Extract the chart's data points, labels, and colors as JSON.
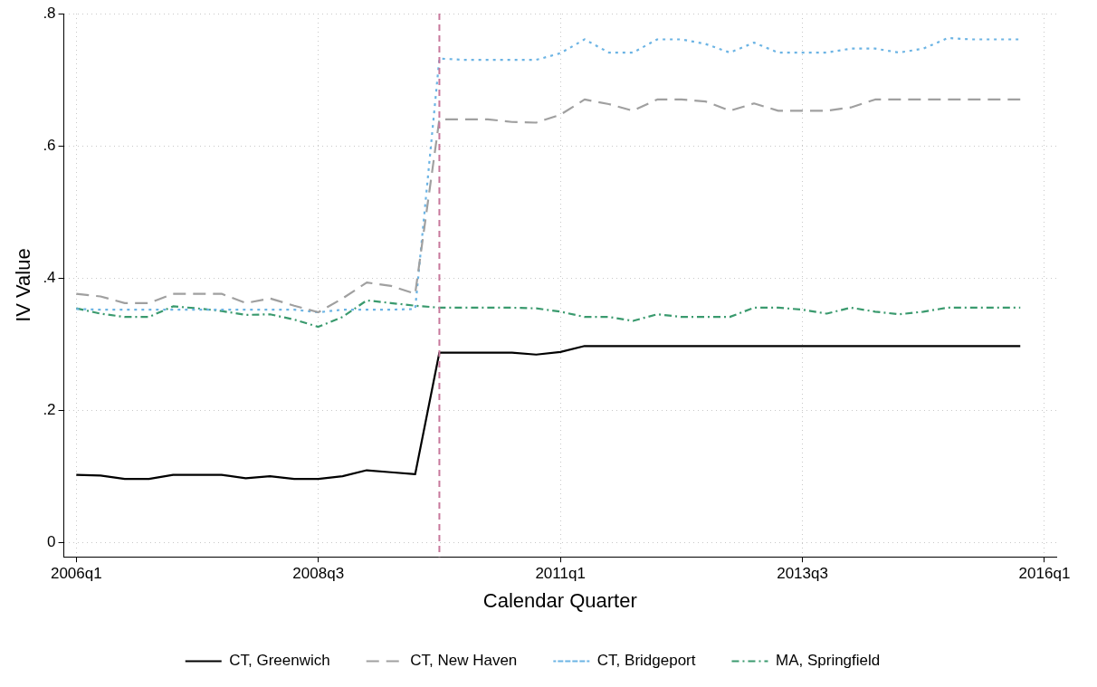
{
  "chart_data": {
    "type": "line",
    "xlabel": "Calendar Quarter",
    "ylabel": "IV Value",
    "x": [
      "2006-01",
      "2006-04",
      "2006-07",
      "2006-10",
      "2007-01",
      "2007-04",
      "2007-07",
      "2007-10",
      "2008-01",
      "2008-04",
      "2008-07",
      "2008-10",
      "2009-01",
      "2009-04",
      "2009-07",
      "2009-10",
      "2010-01",
      "2010-04",
      "2010-07",
      "2010-10",
      "2011-01",
      "2011-04",
      "2011-07",
      "2011-10",
      "2012-01",
      "2012-04",
      "2012-07",
      "2012-10",
      "2013-01",
      "2013-04",
      "2013-07",
      "2013-10",
      "2014-01",
      "2014-04",
      "2014-07",
      "2014-10",
      "2015-01",
      "2015-04",
      "2015-07",
      "2015-10"
    ],
    "series": [
      {
        "name": "CT, Greenwich",
        "color": "#000000",
        "line_style": "solid",
        "values": [
          0.102,
          0.101,
          0.096,
          0.096,
          0.102,
          0.102,
          0.102,
          0.097,
          0.1,
          0.096,
          0.096,
          0.1,
          0.109,
          0.106,
          0.103,
          0.287,
          0.287,
          0.287,
          0.287,
          0.284,
          0.288,
          0.297,
          0.297,
          0.297,
          0.297,
          0.297,
          0.297,
          0.297,
          0.297,
          0.297,
          0.297,
          0.297,
          0.297,
          0.297,
          0.297,
          0.297,
          0.297,
          0.297,
          0.297,
          0.297
        ]
      },
      {
        "name": "CT, New Haven",
        "color": "#a0a0a0",
        "line_style": "dashed",
        "values": [
          0.376,
          0.372,
          0.362,
          0.362,
          0.376,
          0.376,
          0.376,
          0.362,
          0.369,
          0.358,
          0.348,
          0.369,
          0.393,
          0.388,
          0.376,
          0.64,
          0.64,
          0.64,
          0.636,
          0.635,
          0.647,
          0.67,
          0.663,
          0.653,
          0.67,
          0.67,
          0.667,
          0.653,
          0.664,
          0.653,
          0.653,
          0.653,
          0.658,
          0.67,
          0.67,
          0.67,
          0.67,
          0.67,
          0.67,
          0.67
        ]
      },
      {
        "name": "CT, Bridgeport",
        "color": "#6cb4e4",
        "line_style": "dotted",
        "values": [
          0.353,
          0.352,
          0.352,
          0.352,
          0.352,
          0.352,
          0.352,
          0.352,
          0.352,
          0.352,
          0.348,
          0.352,
          0.352,
          0.352,
          0.353,
          0.732,
          0.73,
          0.73,
          0.73,
          0.73,
          0.74,
          0.761,
          0.741,
          0.741,
          0.761,
          0.761,
          0.754,
          0.741,
          0.756,
          0.741,
          0.741,
          0.741,
          0.747,
          0.747,
          0.741,
          0.747,
          0.763,
          0.761,
          0.761,
          0.761
        ]
      },
      {
        "name": "MA, Springfield",
        "color": "#3a9a6e",
        "line_style": "dashdot",
        "values": [
          0.354,
          0.346,
          0.341,
          0.341,
          0.357,
          0.354,
          0.35,
          0.344,
          0.345,
          0.337,
          0.326,
          0.341,
          0.366,
          0.362,
          0.358,
          0.355,
          0.355,
          0.355,
          0.355,
          0.354,
          0.349,
          0.341,
          0.341,
          0.335,
          0.345,
          0.341,
          0.341,
          0.341,
          0.355,
          0.355,
          0.352,
          0.346,
          0.355,
          0.349,
          0.345,
          0.349,
          0.355,
          0.355,
          0.355,
          0.355
        ]
      }
    ],
    "xlim": [
      "2005-11-15",
      "2016-02-15"
    ],
    "xticks": [
      {
        "value": "2006-01",
        "label": "2006q1"
      },
      {
        "value": "2008-07",
        "label": "2008q3"
      },
      {
        "value": "2011-01",
        "label": "2011q1"
      },
      {
        "value": "2013-07",
        "label": "2013q3"
      },
      {
        "value": "2016-01",
        "label": "2016q1"
      }
    ],
    "ylim": [
      -0.022,
      0.8
    ],
    "yticks": [
      0,
      {
        "value": 0.2,
        "label": ".2"
      },
      {
        "value": 0.4,
        "label": ".4"
      },
      {
        "value": 0.6,
        "label": ".6"
      },
      {
        "value": 0.8,
        "label": ".8"
      }
    ],
    "ref_lines": [
      {
        "axis": "x",
        "value": "2009-10",
        "color": "#c8789c",
        "line_style": "dashed"
      }
    ],
    "grid": true,
    "legend": "bottom",
    "marker": "none"
  }
}
